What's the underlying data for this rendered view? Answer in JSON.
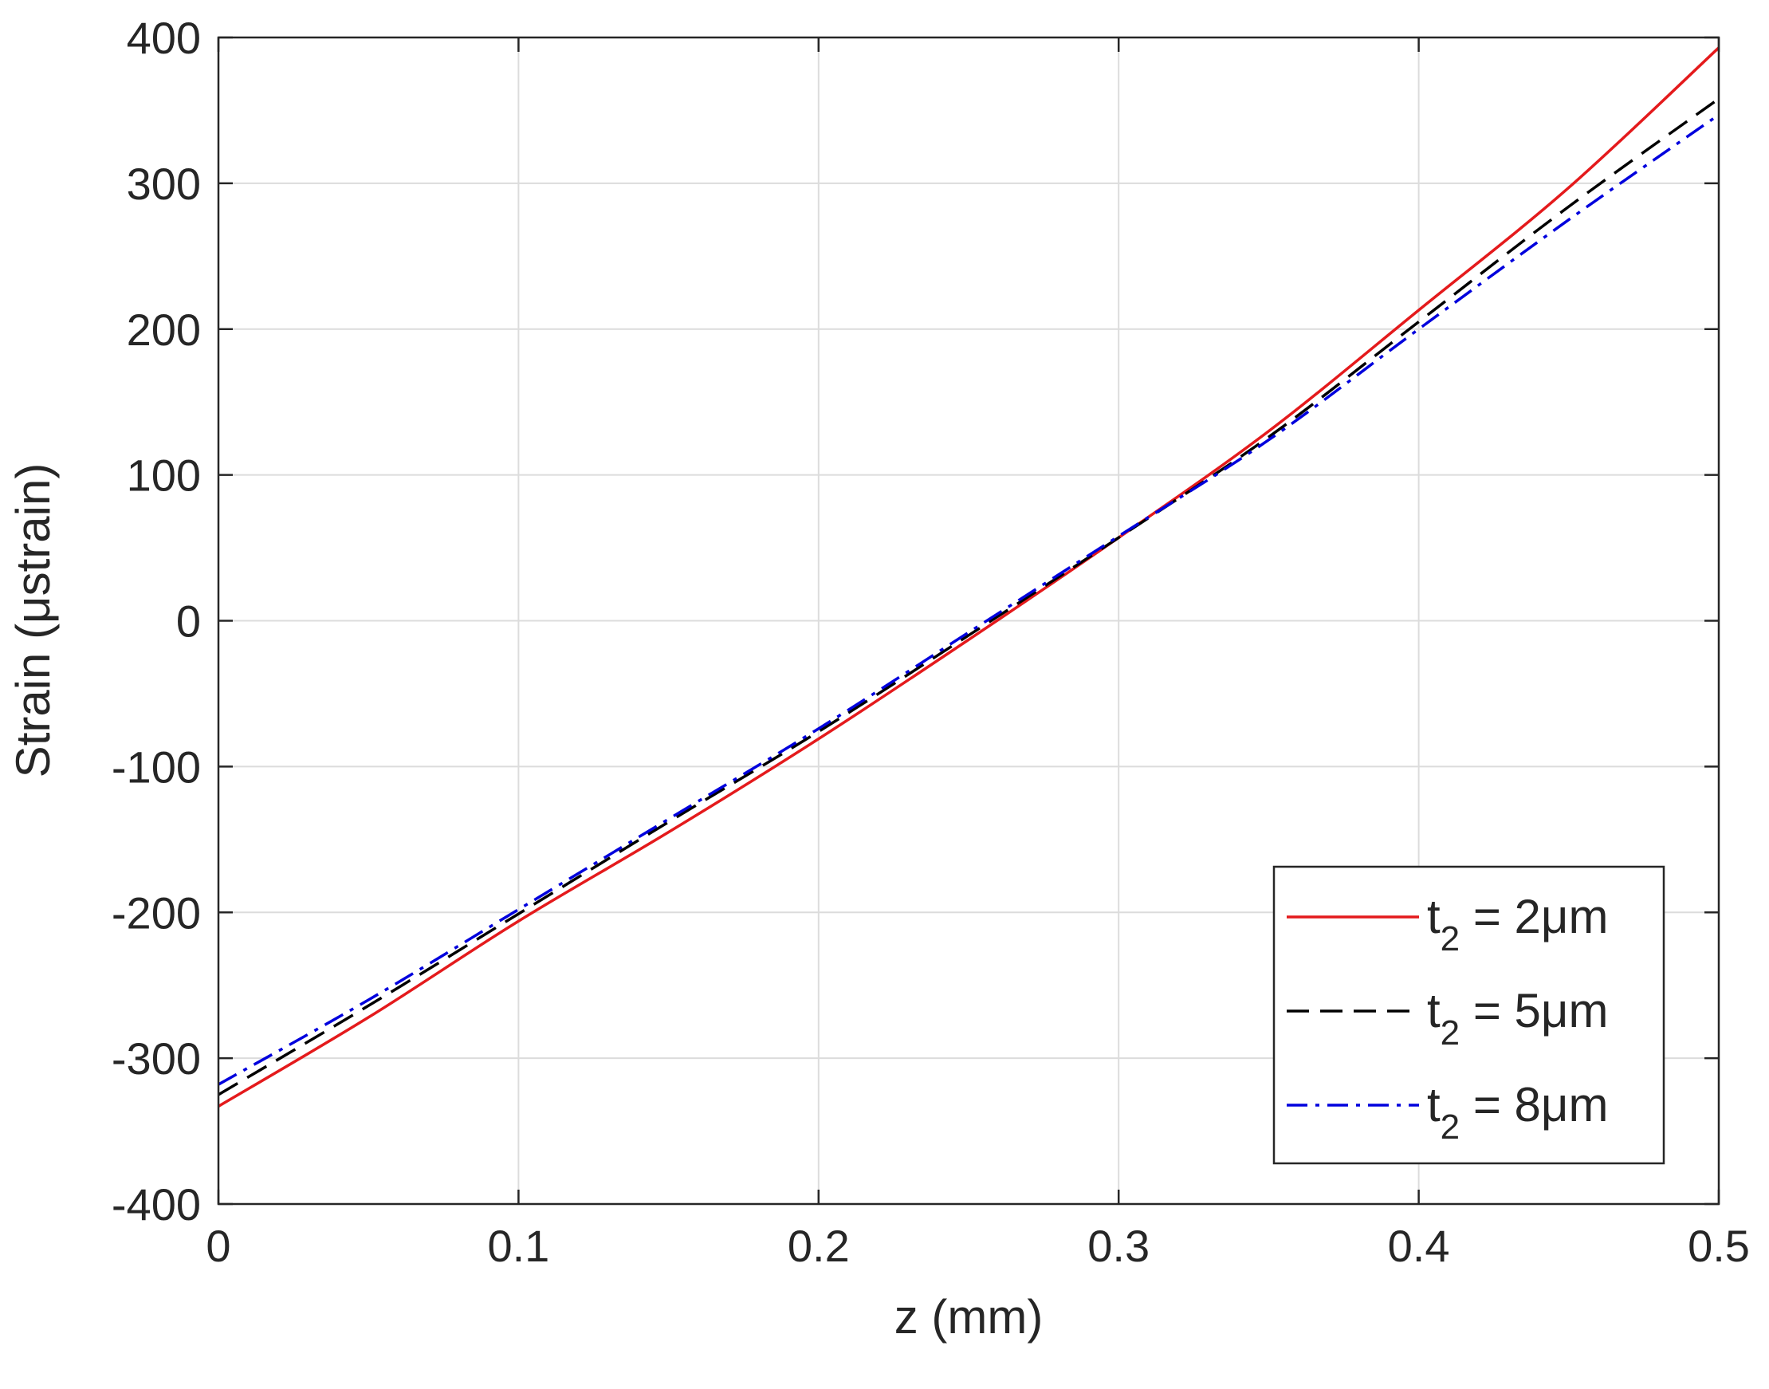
{
  "chart_data": {
    "type": "line",
    "title": "",
    "xlabel": "z (mm)",
    "ylabel": "Strain (μstrain)",
    "xlim": [
      0,
      0.5
    ],
    "ylim": [
      -400,
      400
    ],
    "xticks": [
      0,
      0.1,
      0.2,
      0.3,
      0.4,
      0.5
    ],
    "xtick_labels": [
      "0",
      "0.1",
      "0.2",
      "0.3",
      "0.4",
      "0.5"
    ],
    "yticks": [
      -400,
      -300,
      -200,
      -100,
      0,
      100,
      200,
      300,
      400
    ],
    "ytick_labels": [
      "-400",
      "-300",
      "-200",
      "-100",
      "0",
      "100",
      "200",
      "300",
      "400"
    ],
    "grid": true,
    "legend_position": "bottom-right",
    "x": [
      0,
      0.05,
      0.1,
      0.15,
      0.2,
      0.25,
      0.3,
      0.35,
      0.4,
      0.45,
      0.5
    ],
    "series": [
      {
        "name": "t2 = 2μm",
        "label_main": "t",
        "label_sub": "2",
        "label_rest": " = 2μm",
        "color": "#e41a1c",
        "dash": "solid",
        "values": [
          -333,
          -272,
          -206,
          -145,
          -81,
          -13,
          57,
          130,
          213,
          297,
          393
        ]
      },
      {
        "name": "t2 = 5μm",
        "label_main": "t",
        "label_sub": "2",
        "label_rest": " = 5μm",
        "color": "#000000",
        "dash": "dashed",
        "values": [
          -325,
          -264,
          -201,
          -138,
          -76,
          -10,
          57,
          126,
          205,
          284,
          358
        ]
      },
      {
        "name": "t2 = 8μm",
        "label_main": "t",
        "label_sub": "2",
        "label_rest": " = 8μm",
        "color": "#0000dd",
        "dash": "dashdot",
        "values": [
          -318,
          -260,
          -198,
          -136,
          -74,
          -8,
          58,
          124,
          200,
          275,
          347
        ]
      }
    ]
  }
}
